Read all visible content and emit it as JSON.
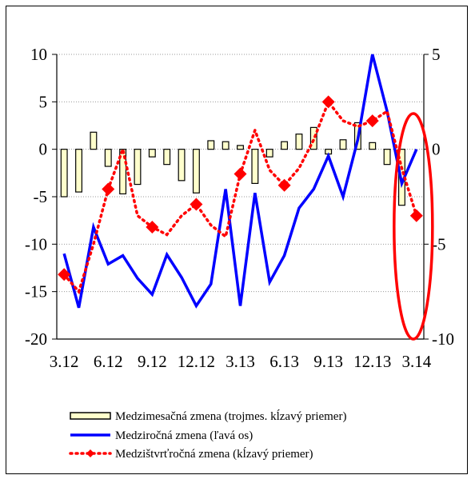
{
  "chart_data": {
    "type": "bar+line",
    "categories": [
      "3.12",
      "4.12",
      "5.12",
      "6.12",
      "7.12",
      "8.12",
      "9.12",
      "10.12",
      "11.12",
      "12.12",
      "1.13",
      "2.13",
      "3.13",
      "4.13",
      "5.13",
      "6.13",
      "7.13",
      "8.13",
      "9.13",
      "10.13",
      "11.13",
      "12.13",
      "1.14",
      "2.14",
      "3.14"
    ],
    "x_tick_labels": [
      "3.12",
      "6.12",
      "9.12",
      "12.12",
      "3.13",
      "6.13",
      "9.13",
      "12.13",
      "3.14"
    ],
    "left_axis": {
      "ylim": [
        -20,
        10
      ],
      "ticks": [
        10,
        5,
        0,
        -5,
        -10,
        -15,
        -20
      ],
      "tick_labels": [
        "10",
        "5",
        "0",
        "-5",
        "-10",
        "-15",
        "-20"
      ]
    },
    "right_axis": {
      "ylim": [
        -10,
        5
      ],
      "ticks": [
        5,
        0,
        -5,
        -10
      ],
      "tick_labels": [
        "5",
        "0",
        "-5",
        "-10"
      ]
    },
    "grid": "horizontal-dotted",
    "legend_position": "bottom",
    "series": [
      {
        "name": "Medzimesačná zmena (trojmes. kĺzavý priemer)",
        "kind": "bar",
        "axis": "left",
        "color": "#FFFFCC",
        "values": [
          -5.0,
          -4.5,
          1.8,
          -1.8,
          -4.7,
          -3.7,
          -0.8,
          -1.6,
          -3.3,
          -4.6,
          0.9,
          0.8,
          0.4,
          -3.6,
          -0.8,
          0.8,
          1.6,
          2.3,
          -0.5,
          1.0,
          2.8,
          0.7,
          -1.6,
          -5.9,
          0.0
        ]
      },
      {
        "name": "Medziročná zmena (ľavá os)",
        "kind": "line",
        "axis": "left",
        "color": "#0000FF",
        "values": [
          -11.0,
          -16.7,
          -8.2,
          -12.1,
          -11.2,
          -13.6,
          -15.3,
          -11.1,
          -13.5,
          -16.5,
          -14.2,
          -4.2,
          -16.5,
          -4.6,
          -14.0,
          -11.2,
          -6.2,
          -4.2,
          -0.7,
          -5.0,
          1.0,
          10.0,
          4.0,
          -3.6,
          0.0
        ]
      },
      {
        "name": "Medzištvrťročná zmena (kĺzavý priemer)",
        "kind": "dotted-line-markers",
        "axis": "right",
        "color": "#FF0000",
        "marker_color": "#FF0000",
        "marker_indices": [
          0,
          3,
          6,
          9,
          12,
          15,
          18,
          21,
          24
        ],
        "values": [
          -6.6,
          -7.5,
          -5.0,
          -2.1,
          0.0,
          -3.5,
          -4.1,
          -4.5,
          -3.5,
          -2.9,
          -4.0,
          -4.6,
          -1.3,
          1.0,
          -1.1,
          -1.9,
          -1.0,
          0.5,
          2.5,
          1.5,
          1.2,
          1.5,
          2.0,
          -1.0,
          -3.5
        ]
      }
    ],
    "annotation": {
      "shape": "ellipse",
      "color": "#FF0000",
      "around_category": "3.14"
    }
  }
}
